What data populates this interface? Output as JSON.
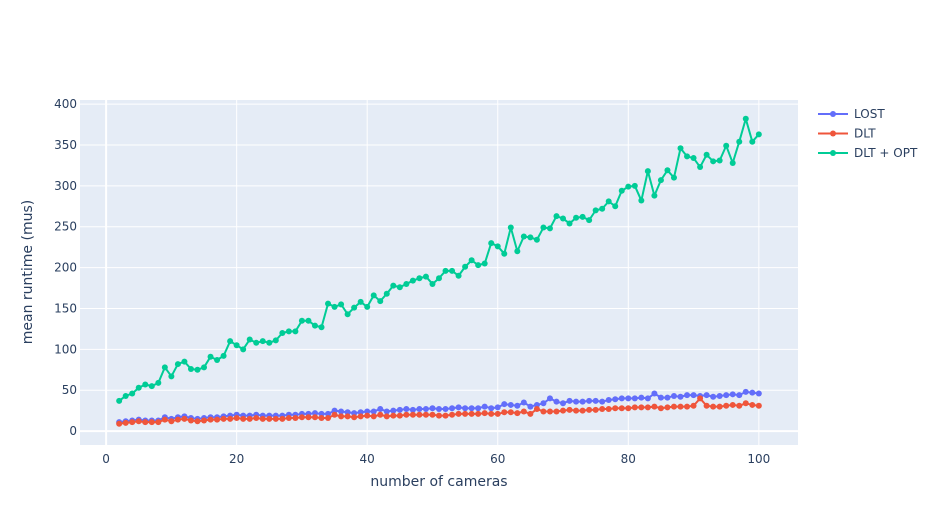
{
  "chart_data": {
    "type": "line",
    "mode": "lines+markers",
    "xlabel": "number of cameras",
    "ylabel": "mean runtime (mus)",
    "xlim": [
      -4,
      106
    ],
    "ylim": [
      -17,
      405
    ],
    "x_ticks": [
      0,
      20,
      40,
      60,
      80,
      100
    ],
    "y_ticks": [
      0,
      50,
      100,
      150,
      200,
      250,
      300,
      350,
      400
    ],
    "grid": true,
    "legend_position": "top-right",
    "plot_background": "#e5ecf6",
    "x": [
      2,
      3,
      4,
      5,
      6,
      7,
      8,
      9,
      10,
      11,
      12,
      13,
      14,
      15,
      16,
      17,
      18,
      19,
      20,
      21,
      22,
      23,
      24,
      25,
      26,
      27,
      28,
      29,
      30,
      31,
      32,
      33,
      34,
      35,
      36,
      37,
      38,
      39,
      40,
      41,
      42,
      43,
      44,
      45,
      46,
      47,
      48,
      49,
      50,
      51,
      52,
      53,
      54,
      55,
      56,
      57,
      58,
      59,
      60,
      61,
      62,
      63,
      64,
      65,
      66,
      67,
      68,
      69,
      70,
      71,
      72,
      73,
      74,
      75,
      76,
      77,
      78,
      79,
      80,
      81,
      82,
      83,
      84,
      85,
      86,
      87,
      88,
      89,
      90,
      91,
      92,
      93,
      94,
      95,
      96,
      97,
      98,
      99,
      100
    ],
    "series": [
      {
        "name": "LOST",
        "color": "#636efa",
        "values": [
          11,
          12,
          13,
          14,
          13,
          13,
          13,
          17,
          15,
          17,
          18,
          16,
          15,
          16,
          17,
          17,
          18,
          19,
          20,
          19,
          19,
          20,
          19,
          19,
          19,
          19,
          20,
          20,
          21,
          21,
          22,
          21,
          21,
          25,
          24,
          23,
          22,
          23,
          24,
          24,
          27,
          24,
          25,
          26,
          27,
          26,
          27,
          27,
          28,
          27,
          27,
          28,
          29,
          28,
          28,
          28,
          30,
          28,
          29,
          33,
          32,
          31,
          35,
          30,
          32,
          34,
          40,
          36,
          34,
          37,
          36,
          36,
          37,
          37,
          36,
          38,
          39,
          40,
          40,
          40,
          41,
          40,
          46,
          41,
          41,
          43,
          42,
          44,
          44,
          43,
          44,
          42,
          43,
          44,
          45,
          44,
          48,
          47,
          46
        ]
      },
      {
        "name": "DLT",
        "color": "#ef553b",
        "values": [
          9,
          10,
          11,
          12,
          11,
          11,
          11,
          14,
          12,
          14,
          15,
          13,
          12,
          13,
          14,
          14,
          15,
          15,
          16,
          15,
          15,
          16,
          15,
          15,
          15,
          15,
          16,
          16,
          17,
          17,
          17,
          16,
          16,
          20,
          18,
          18,
          17,
          18,
          19,
          18,
          20,
          18,
          19,
          19,
          20,
          20,
          20,
          20,
          20,
          19,
          19,
          20,
          21,
          21,
          21,
          21,
          22,
          21,
          21,
          23,
          23,
          22,
          24,
          21,
          27,
          24,
          24,
          24,
          25,
          26,
          25,
          25,
          26,
          26,
          27,
          27,
          28,
          28,
          28,
          29,
          29,
          29,
          30,
          28,
          29,
          30,
          30,
          30,
          31,
          40,
          31,
          30,
          30,
          31,
          32,
          31,
          34,
          32,
          31
        ]
      },
      {
        "name": "DLT + OPT",
        "color": "#00cc96",
        "values": [
          37,
          43,
          46,
          53,
          57,
          55,
          59,
          78,
          67,
          82,
          85,
          76,
          75,
          78,
          91,
          87,
          92,
          110,
          105,
          100,
          112,
          108,
          110,
          108,
          111,
          120,
          122,
          122,
          135,
          135,
          129,
          127,
          156,
          152,
          155,
          143,
          151,
          158,
          152,
          166,
          159,
          168,
          178,
          176,
          180,
          184,
          187,
          189,
          180,
          187,
          196,
          196,
          190,
          201,
          209,
          203,
          205,
          230,
          226,
          217,
          249,
          220,
          238,
          237,
          234,
          249,
          248,
          263,
          260,
          254,
          261,
          262,
          258,
          270,
          272,
          281,
          275,
          294,
          299,
          300,
          282,
          318,
          288,
          307,
          319,
          310,
          346,
          336,
          334,
          323,
          338,
          330,
          331,
          349,
          328,
          354,
          382,
          354,
          363
        ]
      }
    ]
  }
}
